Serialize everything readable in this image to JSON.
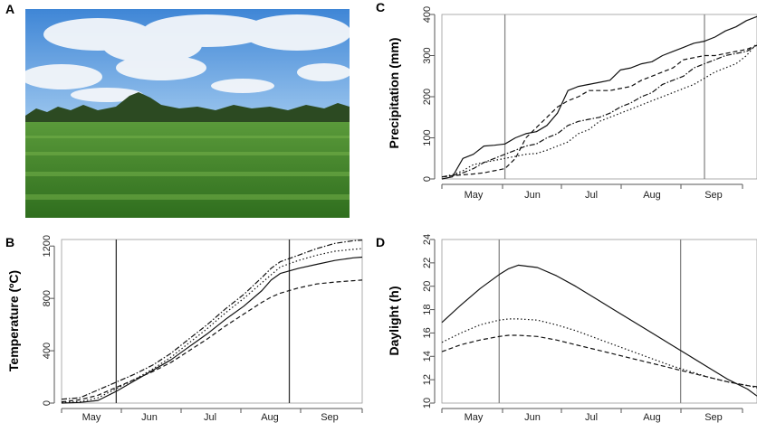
{
  "panel_labels": {
    "a": "A",
    "b": "B",
    "c": "C",
    "d": "D"
  },
  "photo": {
    "description_icon": "potato-field-photo"
  },
  "chart_data": [
    {
      "id": "B",
      "type": "line",
      "ylabel": "Temperature (ºC)",
      "ylim": [
        0,
        1250
      ],
      "yticks": [
        0,
        400,
        800,
        1200
      ],
      "x_month_ticks": [
        "May",
        "Jun",
        "Jul",
        "Aug",
        "Sep"
      ],
      "x": [
        0,
        10,
        20,
        30,
        40,
        50,
        60,
        70,
        80,
        90,
        100,
        110,
        115,
        120,
        130,
        140,
        150,
        160,
        165
      ],
      "vlines": [
        30,
        125
      ],
      "series": [
        {
          "style": "solid",
          "values": [
            0,
            5,
            20,
            90,
            170,
            250,
            330,
            430,
            530,
            640,
            740,
            860,
            940,
            990,
            1030,
            1060,
            1090,
            1110,
            1115
          ]
        },
        {
          "style": "dotted",
          "values": [
            5,
            10,
            40,
            110,
            180,
            260,
            350,
            460,
            570,
            690,
            800,
            920,
            980,
            1040,
            1090,
            1130,
            1160,
            1175,
            1180
          ]
        },
        {
          "style": "dashdot",
          "values": [
            30,
            40,
            100,
            160,
            220,
            290,
            380,
            490,
            600,
            720,
            830,
            960,
            1030,
            1080,
            1130,
            1180,
            1220,
            1240,
            1245
          ]
        },
        {
          "style": "dashed",
          "values": [
            10,
            25,
            60,
            120,
            180,
            240,
            310,
            400,
            490,
            590,
            680,
            770,
            810,
            840,
            880,
            910,
            925,
            935,
            940
          ]
        }
      ]
    },
    {
      "id": "C",
      "type": "line",
      "ylabel": "Precipitation (mm)",
      "ylim": [
        0,
        400
      ],
      "yticks": [
        0,
        100,
        200,
        300,
        400
      ],
      "x_month_ticks": [
        "May",
        "Jun",
        "Jul",
        "Aug",
        "Sep"
      ],
      "x": [
        0,
        5,
        10,
        15,
        20,
        25,
        30,
        35,
        40,
        45,
        50,
        55,
        60,
        65,
        70,
        75,
        80,
        85,
        90,
        95,
        100,
        105,
        110,
        115,
        120,
        125,
        130,
        135,
        140,
        145,
        150
      ],
      "vlines": [
        30,
        125
      ],
      "series": [
        {
          "style": "solid",
          "values": [
            0,
            5,
            50,
            60,
            80,
            82,
            85,
            100,
            110,
            115,
            130,
            160,
            215,
            225,
            230,
            235,
            240,
            265,
            270,
            280,
            285,
            300,
            310,
            320,
            330,
            335,
            345,
            360,
            370,
            385,
            395
          ]
        },
        {
          "style": "dotted",
          "values": [
            5,
            10,
            20,
            35,
            40,
            45,
            50,
            55,
            60,
            62,
            70,
            80,
            90,
            110,
            120,
            140,
            150,
            160,
            170,
            180,
            190,
            200,
            210,
            220,
            230,
            245,
            260,
            270,
            280,
            300,
            330
          ]
        },
        {
          "style": "dashdot",
          "values": [
            5,
            8,
            15,
            25,
            40,
            50,
            60,
            70,
            80,
            85,
            100,
            110,
            130,
            140,
            145,
            150,
            160,
            175,
            185,
            200,
            210,
            230,
            240,
            250,
            270,
            280,
            290,
            300,
            305,
            310,
            325
          ]
        },
        {
          "style": "dashed",
          "values": [
            5,
            8,
            10,
            12,
            15,
            20,
            25,
            50,
            100,
            125,
            150,
            175,
            190,
            200,
            215,
            215,
            215,
            220,
            225,
            240,
            250,
            260,
            270,
            290,
            295,
            300,
            300,
            305,
            310,
            315,
            325
          ]
        }
      ]
    },
    {
      "id": "D",
      "type": "line",
      "ylabel": "Daylight (h)",
      "ylim": [
        10,
        24
      ],
      "yticks": [
        10,
        12,
        14,
        16,
        18,
        20,
        22,
        24
      ],
      "x_month_ticks": [
        "May",
        "Jun",
        "Jul",
        "Aug",
        "Sep"
      ],
      "x": [
        0,
        10,
        20,
        30,
        35,
        40,
        50,
        60,
        70,
        80,
        90,
        100,
        110,
        120,
        130,
        140,
        150,
        160,
        165
      ],
      "vlines": [
        30,
        125
      ],
      "series": [
        {
          "style": "solid",
          "values": [
            16.9,
            18.4,
            19.8,
            21.0,
            21.5,
            21.8,
            21.6,
            20.9,
            20.0,
            19.0,
            18.0,
            17.0,
            16.0,
            15.0,
            14.0,
            13.0,
            12.0,
            11.2,
            10.6
          ]
        },
        {
          "style": "dotted",
          "values": [
            15.2,
            16.0,
            16.7,
            17.1,
            17.2,
            17.2,
            17.1,
            16.7,
            16.2,
            15.6,
            15.0,
            14.4,
            13.8,
            13.2,
            12.7,
            12.2,
            11.8,
            11.5,
            11.3
          ]
        },
        {
          "style": "dashed",
          "values": [
            14.4,
            15.0,
            15.4,
            15.7,
            15.8,
            15.8,
            15.7,
            15.4,
            15.0,
            14.6,
            14.2,
            13.8,
            13.4,
            13.0,
            12.6,
            12.2,
            11.8,
            11.5,
            11.4
          ]
        }
      ]
    }
  ]
}
